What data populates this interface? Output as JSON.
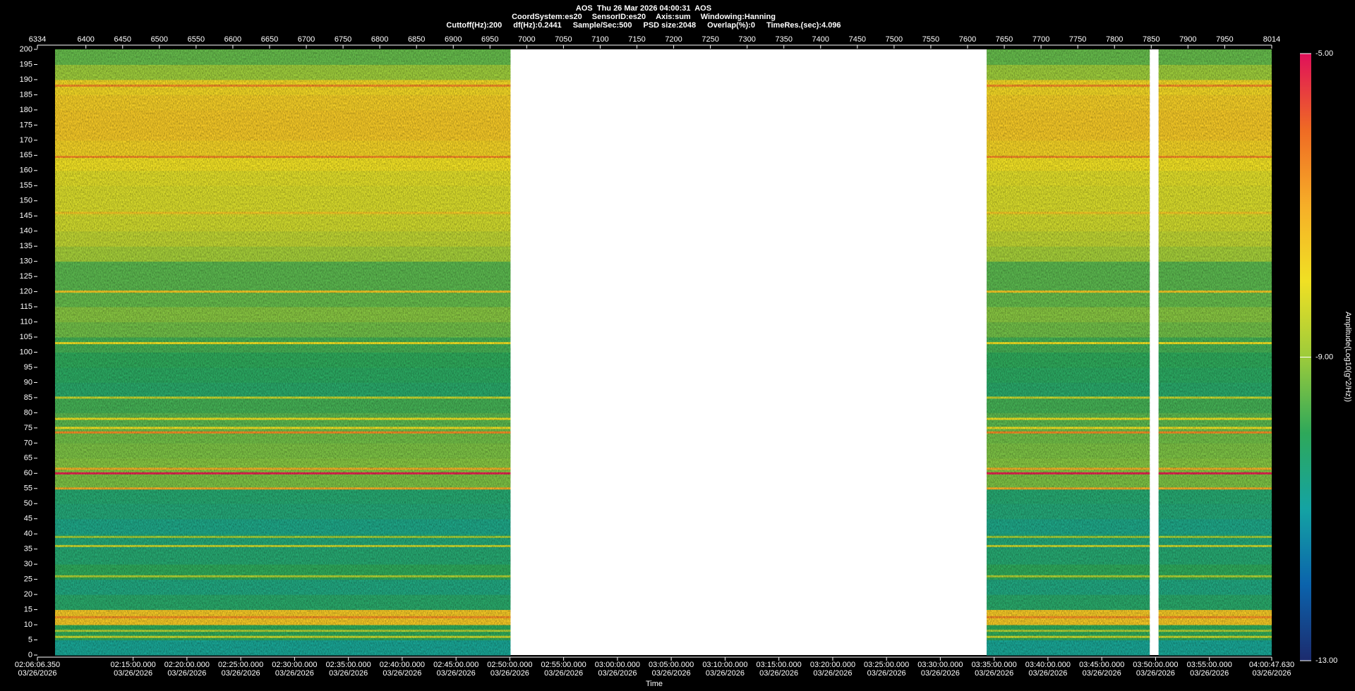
{
  "chart_data": {
    "type": "spectrogram",
    "title": "AOS  Thu 26 Mar 2026 04:00:31  AOS",
    "subtitle": [
      "CoordSystem:es20",
      "SensorID:es20",
      "Axis:sum",
      "Windowing:Hanning"
    ],
    "parameters": [
      "Cuttoff(Hz):200",
      "df(Hz):0.2441",
      "Sample/Sec:500",
      "PSD size:2048",
      "Overlap(%):0",
      "TimeRes.(sec):4.096"
    ],
    "x_label": "Time",
    "colorbar_label": "Amplitude(Log10(g^2/Hz))",
    "xlim": [
      6334,
      8014
    ],
    "xticks": [
      6334,
      6400,
      6450,
      6500,
      6550,
      6600,
      6650,
      6700,
      6750,
      6800,
      6850,
      6900,
      6950,
      7000,
      7050,
      7100,
      7150,
      7200,
      7250,
      7300,
      7350,
      7400,
      7450,
      7500,
      7550,
      7600,
      7650,
      7700,
      7750,
      7800,
      7850,
      7900,
      7950,
      8014
    ],
    "time_ticks": [
      {
        "value": 6334,
        "label": "02:06:06.350",
        "date": "03/26/2026"
      },
      {
        "value": 6464.3,
        "label": "02:15:00.000",
        "date": "03/26/2026"
      },
      {
        "value": 6537.5,
        "label": "02:20:00.000",
        "date": "03/26/2026"
      },
      {
        "value": 6610.8,
        "label": "02:25:00.000",
        "date": "03/26/2026"
      },
      {
        "value": 6684.0,
        "label": "02:30:00.000",
        "date": "03/26/2026"
      },
      {
        "value": 6757.3,
        "label": "02:35:00.000",
        "date": "03/26/2026"
      },
      {
        "value": 6830.5,
        "label": "02:40:00.000",
        "date": "03/26/2026"
      },
      {
        "value": 6903.8,
        "label": "02:45:00.000",
        "date": "03/26/2026"
      },
      {
        "value": 6977.0,
        "label": "02:50:00.000",
        "date": "03/26/2026"
      },
      {
        "value": 7050.2,
        "label": "02:55:00.000",
        "date": "03/26/2026"
      },
      {
        "value": 7123.5,
        "label": "03:00:00.000",
        "date": "03/26/2026"
      },
      {
        "value": 7196.7,
        "label": "03:05:00.000",
        "date": "03/26/2026"
      },
      {
        "value": 7270.0,
        "label": "03:10:00.000",
        "date": "03/26/2026"
      },
      {
        "value": 7343.2,
        "label": "03:15:00.000",
        "date": "03/26/2026"
      },
      {
        "value": 7416.5,
        "label": "03:20:00.000",
        "date": "03/26/2026"
      },
      {
        "value": 7489.7,
        "label": "03:25:00.000",
        "date": "03/26/2026"
      },
      {
        "value": 7562.9,
        "label": "03:30:00.000",
        "date": "03/26/2026"
      },
      {
        "value": 7636.2,
        "label": "03:35:00.000",
        "date": "03/26/2026"
      },
      {
        "value": 7709.4,
        "label": "03:40:00.000",
        "date": "03/26/2026"
      },
      {
        "value": 7782.7,
        "label": "03:45:00.000",
        "date": "03/26/2026"
      },
      {
        "value": 7855.9,
        "label": "03:50:00.000",
        "date": "03/26/2026"
      },
      {
        "value": 7929.2,
        "label": "03:55:00.000",
        "date": "03/26/2026"
      },
      {
        "value": 8014,
        "label": "04:00:47.630",
        "date": "03/26/2026"
      }
    ],
    "ylim": [
      0,
      200
    ],
    "yticks": [
      0,
      5,
      10,
      15,
      20,
      25,
      30,
      35,
      40,
      45,
      50,
      55,
      60,
      65,
      70,
      75,
      80,
      85,
      90,
      95,
      100,
      105,
      110,
      115,
      120,
      125,
      130,
      135,
      140,
      145,
      150,
      155,
      160,
      165,
      170,
      175,
      180,
      185,
      190,
      195,
      200
    ],
    "clim": [
      -13,
      -5
    ],
    "cticks": [
      {
        "value": -5,
        "label": "-5.00"
      },
      {
        "value": -9,
        "label": "-9.00"
      },
      {
        "value": -13,
        "label": "-13.00"
      }
    ],
    "colormap": [
      "#1c2b6e",
      "#0b63ac",
      "#14a3a3",
      "#2ea85a",
      "#9ccb3b",
      "#f0e024",
      "#f6ae28",
      "#ef6a24",
      "#e0105a"
    ],
    "segments": [
      [
        6358,
        6978
      ],
      [
        7626,
        7848
      ],
      [
        7860,
        8014
      ]
    ],
    "freq_bins": [
      0,
      5,
      10,
      15,
      20,
      25,
      30,
      35,
      40,
      45,
      50,
      55,
      60,
      65,
      70,
      75,
      80,
      85,
      90,
      95,
      100,
      105,
      110,
      115,
      120,
      125,
      130,
      135,
      140,
      145,
      150,
      155,
      160,
      165,
      170,
      175,
      180,
      185,
      190,
      195,
      200
    ],
    "levels": [
      -10.8,
      -10.0,
      -7.5,
      -10.2,
      -10.5,
      -10.0,
      -10.3,
      -10.4,
      -10.6,
      -10.4,
      -10.3,
      -9.3,
      -9.2,
      -9.3,
      -9.4,
      -9.6,
      -9.8,
      -10.2,
      -10.1,
      -10.0,
      -9.8,
      -9.4,
      -9.2,
      -9.5,
      -9.6,
      -9.6,
      -8.9,
      -8.6,
      -8.4,
      -8.3,
      -8.3,
      -8.2,
      -8.0,
      -7.7,
      -7.5,
      -7.5,
      -7.6,
      -7.8,
      -9.0,
      -9.5
    ],
    "lines": {
      "freqs": [
        6,
        8,
        12.5,
        26,
        36,
        39,
        55,
        60,
        61.5,
        73.5,
        75,
        78,
        85,
        103,
        120,
        146,
        164.5,
        188
      ],
      "levels": [
        -8.5,
        -8.8,
        -6.5,
        -8.8,
        -8.5,
        -9.0,
        -7.0,
        -5.2,
        -7.0,
        -6.5,
        -8.0,
        -8.0,
        -8.5,
        -8.0,
        -7.5,
        -7.5,
        -6.5,
        -6.5
      ]
    }
  }
}
